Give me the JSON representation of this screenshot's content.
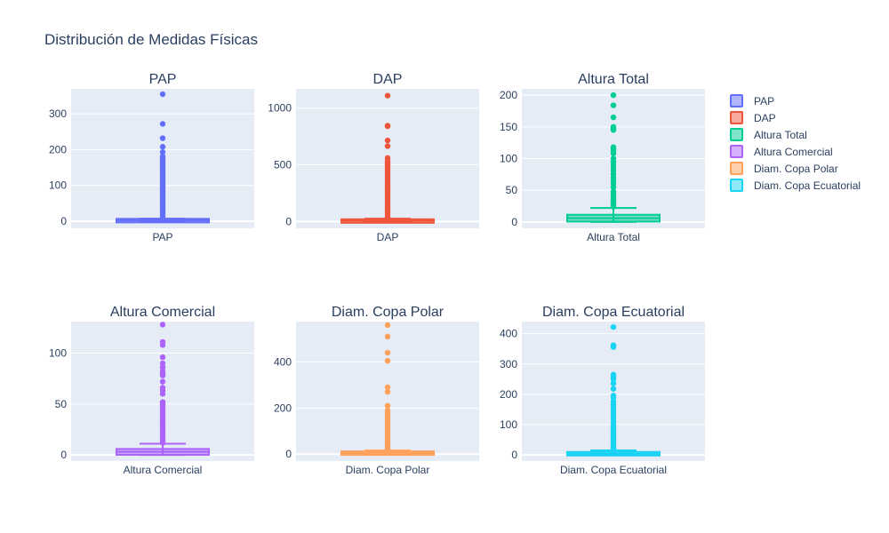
{
  "title": "Distribución de Medidas Físicas",
  "legend": [
    {
      "name": "PAP",
      "color": "#636efa"
    },
    {
      "name": "DAP",
      "color": "#EF553B"
    },
    {
      "name": "Altura Total",
      "color": "#00cc96"
    },
    {
      "name": "Altura Comercial",
      "color": "#ab63fa"
    },
    {
      "name": "Diam. Copa Polar",
      "color": "#FFA15A"
    },
    {
      "name": "Diam. Copa Ecuatorial",
      "color": "#19d3f3"
    }
  ],
  "chart_data": [
    {
      "type": "box",
      "title": "PAP",
      "category": "PAP",
      "color": "#636efa",
      "ylim": [
        -20,
        370
      ],
      "yticks": [
        0,
        100,
        200,
        300
      ],
      "box": {
        "min": 0,
        "q1": 1,
        "median": 2,
        "q3": 4,
        "upper_fence": 7
      },
      "outliers": [
        355,
        272,
        232,
        208,
        193,
        181,
        175,
        170,
        165,
        160,
        155,
        150,
        145,
        140,
        135,
        130,
        125,
        120,
        115,
        110,
        105,
        100,
        95,
        90,
        85,
        80,
        75,
        70,
        65,
        60,
        55,
        50,
        45,
        40,
        35,
        30,
        25,
        20,
        15,
        10,
        8
      ]
    },
    {
      "type": "box",
      "title": "DAP",
      "category": "DAP",
      "color": "#EF553B",
      "ylim": [
        -60,
        1170
      ],
      "yticks": [
        0,
        500,
        1000
      ],
      "box": {
        "min": 0,
        "q1": 3,
        "median": 6,
        "q3": 12,
        "upper_fence": 25
      },
      "outliers": [
        1110,
        845,
        840,
        715,
        665,
        560,
        540,
        520,
        500,
        480,
        460,
        440,
        420,
        400,
        380,
        360,
        340,
        320,
        300,
        280,
        260,
        240,
        220,
        200,
        180,
        160,
        140,
        120,
        100,
        80,
        60,
        40,
        30
      ]
    },
    {
      "type": "box",
      "title": "Altura Total",
      "category": "Altura Total",
      "color": "#00cc96",
      "ylim": [
        -10,
        210
      ],
      "yticks": [
        0,
        50,
        100,
        150,
        200
      ],
      "box": {
        "min": 0,
        "q1": 2,
        "median": 6,
        "q3": 10,
        "upper_fence": 22
      },
      "outliers": [
        200,
        184,
        165,
        150,
        147,
        145,
        118,
        115,
        112,
        108,
        100,
        95,
        90,
        85,
        80,
        75,
        70,
        65,
        60,
        55,
        48,
        45,
        42,
        40,
        38,
        36,
        34,
        32,
        30,
        28,
        26,
        24
      ]
    },
    {
      "type": "box",
      "title": "Altura Comercial",
      "category": "Altura Comercial",
      "color": "#ab63fa",
      "ylim": [
        -6,
        131
      ],
      "yticks": [
        0,
        50,
        100
      ],
      "box": {
        "min": 0,
        "q1": 1,
        "median": 3,
        "q3": 5,
        "upper_fence": 11
      },
      "outliers": [
        128,
        111,
        108,
        96,
        90,
        86,
        82,
        80,
        78,
        72,
        66,
        63,
        60,
        52,
        50,
        48,
        46,
        44,
        42,
        40,
        38,
        36,
        34,
        32,
        30,
        28,
        26,
        24,
        22,
        20,
        18,
        16,
        14,
        12
      ]
    },
    {
      "type": "box",
      "title": "Diam. Copa Polar",
      "category": "Diam. Copa Polar",
      "color": "#FFA15A",
      "ylim": [
        -30,
        575
      ],
      "yticks": [
        0,
        200,
        400
      ],
      "box": {
        "min": 0,
        "q1": 2,
        "median": 4,
        "q3": 8,
        "upper_fence": 16
      },
      "outliers": [
        560,
        510,
        440,
        405,
        290,
        270,
        210,
        190,
        180,
        170,
        160,
        150,
        140,
        130,
        120,
        110,
        100,
        90,
        80,
        70,
        60,
        50,
        40,
        35,
        30,
        25,
        20
      ]
    },
    {
      "type": "box",
      "title": "Diam. Copa Ecuatorial",
      "category": "Diam. Copa Ecuatorial",
      "color": "#19d3f3",
      "ylim": [
        -20,
        440
      ],
      "yticks": [
        0,
        100,
        200,
        300,
        400
      ],
      "box": {
        "min": 0,
        "q1": 2,
        "median": 4,
        "q3": 7,
        "upper_fence": 15
      },
      "outliers": [
        422,
        362,
        356,
        265,
        258,
        250,
        236,
        218,
        196,
        188,
        176,
        168,
        160,
        150,
        140,
        130,
        120,
        110,
        100,
        95,
        90,
        85,
        80,
        75,
        70,
        65,
        60,
        55,
        50,
        45,
        40,
        35,
        30,
        25,
        20,
        18
      ]
    }
  ]
}
